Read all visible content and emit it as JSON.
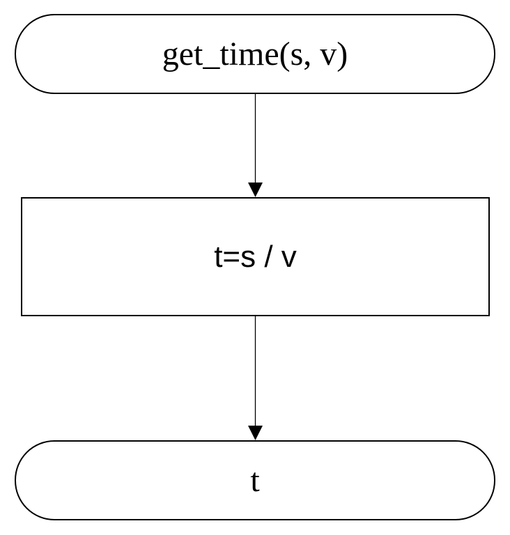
{
  "flowchart": {
    "start": {
      "label": "get_time(s, v)"
    },
    "process": {
      "label": "t=s / v"
    },
    "end": {
      "label": "t"
    }
  }
}
